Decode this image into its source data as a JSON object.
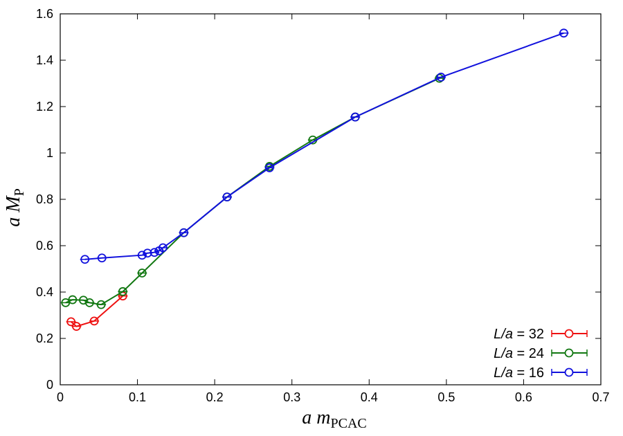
{
  "chart_data": {
    "type": "line",
    "xlabel": {
      "main": "a m",
      "sub": "PCAC"
    },
    "ylabel": {
      "main": "a M",
      "sub": "P"
    },
    "xlim": [
      0,
      0.7
    ],
    "ylim": [
      0,
      1.6
    ],
    "xticks": [
      "0",
      "0.1",
      "0.2",
      "0.3",
      "0.4",
      "0.5",
      "0.6",
      "0.7"
    ],
    "yticks": [
      "0",
      "0.2",
      "0.4",
      "0.6",
      "0.8",
      "1",
      "1.2",
      "1.4",
      "1.6"
    ],
    "grid": false,
    "legend_position": "bottom-right",
    "series": [
      {
        "name_prefix": "L/a",
        "name_value": "= 32",
        "color": "#ee1111",
        "x": [
          0.014,
          0.021,
          0.044,
          0.081
        ],
        "y": [
          0.272,
          0.252,
          0.275,
          0.383
        ]
      },
      {
        "name_prefix": "L/a",
        "name_value": "= 24",
        "color": "#117711",
        "x": [
          0.007,
          0.016,
          0.03,
          0.038,
          0.053,
          0.081,
          0.106,
          0.16,
          0.216,
          0.271,
          0.327,
          0.382,
          0.491
        ],
        "y": [
          0.354,
          0.367,
          0.365,
          0.354,
          0.346,
          0.402,
          0.482,
          0.656,
          0.81,
          0.942,
          1.056,
          1.155,
          1.322
        ]
      },
      {
        "name_prefix": "L/a",
        "name_value": "= 16",
        "color": "#1111dd",
        "x": [
          0.032,
          0.054,
          0.106,
          0.113,
          0.122,
          0.128,
          0.133,
          0.16,
          0.216,
          0.271,
          0.382,
          0.493,
          0.652
        ],
        "y": [
          0.541,
          0.547,
          0.559,
          0.568,
          0.571,
          0.578,
          0.591,
          0.656,
          0.81,
          0.936,
          1.155,
          1.327,
          1.517
        ]
      }
    ]
  }
}
